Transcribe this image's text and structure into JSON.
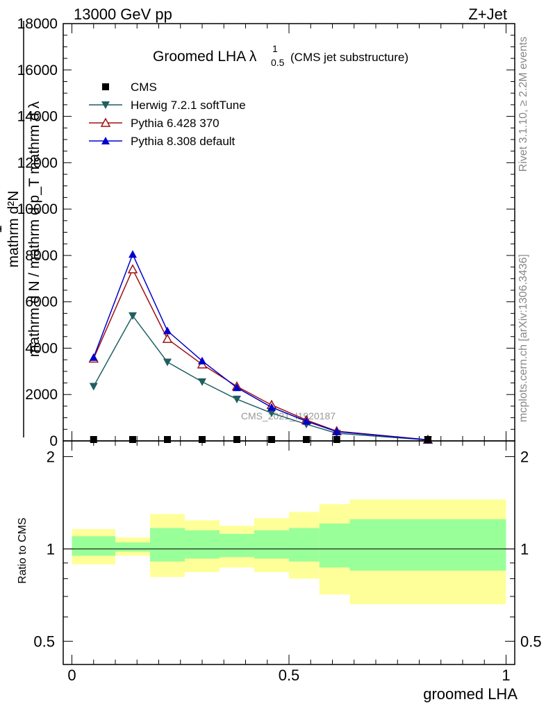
{
  "header": {
    "energy_label": "13000 GeV pp",
    "process_label": "Z+Jet"
  },
  "side_labels": {
    "rivet": "Rivet 3.1.10, ≥ 2.2M events",
    "mcplots": "mcplots.cern.ch [arXiv:1306.3436]"
  },
  "watermark": "CMS_2021_I1920187",
  "chart_data": [
    {
      "type": "line",
      "title": "Groomed LHA",
      "title_symbol": "λ",
      "title_superscript": "1",
      "title_subscript": "0.5",
      "title_suffix": "(CMS jet substructure)",
      "xlabel": "",
      "ylabel_lines": [
        "mathrm d²N",
        "1",
        "mathrm d N / mathrm d p_T mathrm d λ",
        "mathrm d p_T mathrm d lambda"
      ],
      "xlim": [
        -0.02,
        1.02
      ],
      "ylim": [
        0,
        18000
      ],
      "yticks": [
        0,
        2000,
        4000,
        6000,
        8000,
        10000,
        12000,
        14000,
        16000,
        18000
      ],
      "ytick_labels": [
        "0",
        "2000",
        "4000",
        "6000",
        "8000",
        "10000",
        "12000",
        "14000",
        "16000",
        "18000"
      ],
      "legend_position": "top-left",
      "series": [
        {
          "name": "CMS",
          "color": "#000000",
          "marker": "square",
          "x": [
            0.05,
            0.14,
            0.22,
            0.3,
            0.38,
            0.46,
            0.54,
            0.61,
            0.82
          ],
          "y": [
            0,
            0,
            0,
            0,
            0,
            0,
            0,
            0,
            0
          ]
        },
        {
          "name": "Herwig 7.2.1 softTune",
          "color": "#1f5f62",
          "marker": "triangle-down",
          "x": [
            0.05,
            0.14,
            0.22,
            0.3,
            0.38,
            0.46,
            0.54,
            0.61,
            0.82
          ],
          "y": [
            2350,
            5400,
            3400,
            2550,
            1800,
            1200,
            720,
            330,
            40
          ]
        },
        {
          "name": "Pythia 6.428 370",
          "color": "#a01010",
          "marker": "triangle-up-open",
          "x": [
            0.05,
            0.14,
            0.22,
            0.3,
            0.38,
            0.46,
            0.54,
            0.61,
            0.82
          ],
          "y": [
            3550,
            7400,
            4400,
            3300,
            2350,
            1550,
            900,
            420,
            50
          ]
        },
        {
          "name": "Pythia 8.308 default",
          "color": "#0000cc",
          "marker": "triangle-up",
          "x": [
            0.05,
            0.14,
            0.22,
            0.3,
            0.38,
            0.46,
            0.54,
            0.61,
            0.82
          ],
          "y": [
            3600,
            8050,
            4750,
            3450,
            2300,
            1450,
            850,
            400,
            45
          ]
        }
      ]
    },
    {
      "type": "area",
      "xlabel": "groomed LHA",
      "ylabel": "Ratio to CMS",
      "xlim": [
        -0.02,
        1.02
      ],
      "ylim": [
        0.42,
        2.25
      ],
      "log_y": true,
      "xticks": [
        0,
        0.5,
        1
      ],
      "xtick_labels": [
        "0",
        "0.5",
        "1"
      ],
      "yticks": [
        0.5,
        1,
        2
      ],
      "ytick_labels": [
        "0.5",
        "1",
        "2"
      ],
      "reference_line": 1,
      "bands": {
        "edges": [
          0,
          0.1,
          0.18,
          0.26,
          0.34,
          0.42,
          0.5,
          0.57,
          0.64,
          1.0
        ],
        "outer": {
          "color": "#ffff99",
          "low": [
            0.89,
            0.95,
            0.81,
            0.84,
            0.87,
            0.84,
            0.8,
            0.71,
            0.66
          ],
          "high": [
            1.16,
            1.09,
            1.3,
            1.24,
            1.19,
            1.26,
            1.32,
            1.4,
            1.45
          ]
        },
        "inner": {
          "color": "#99ff99",
          "low": [
            0.95,
            0.98,
            0.91,
            0.93,
            0.94,
            0.93,
            0.91,
            0.87,
            0.85
          ],
          "high": [
            1.1,
            1.05,
            1.17,
            1.15,
            1.12,
            1.15,
            1.17,
            1.21,
            1.25
          ]
        }
      }
    }
  ]
}
